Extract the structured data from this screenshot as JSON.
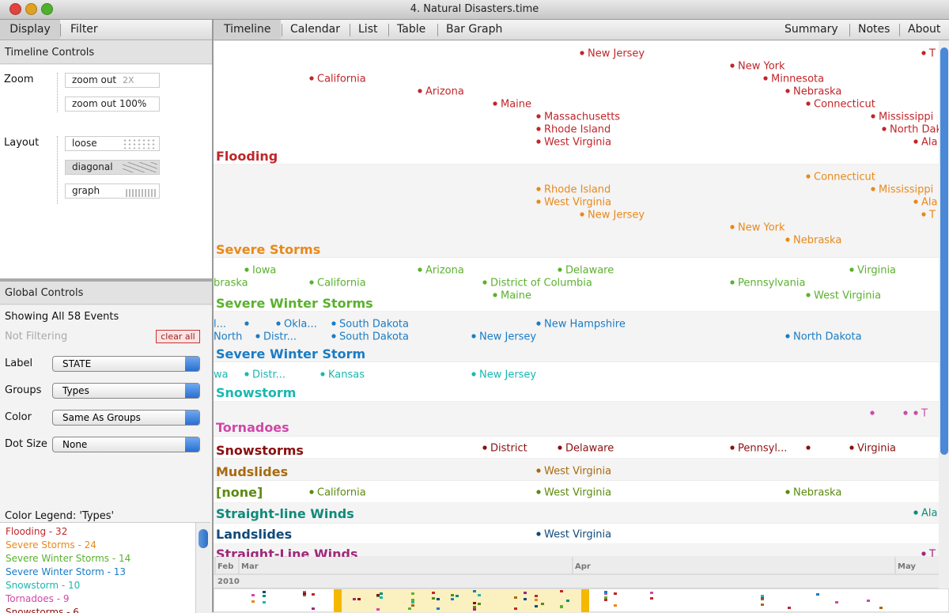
{
  "window_title": "4. Natural Disasters.time",
  "left_tabs": [
    "Display",
    "Filter"
  ],
  "timeline_controls": {
    "title": "Timeline Controls",
    "zoom_label": "Zoom",
    "zoom_buttons": [
      {
        "label": "zoom out",
        "hint": "2X"
      },
      {
        "label": "zoom out 100%"
      }
    ],
    "layout_label": "Layout",
    "layout_buttons": [
      "loose",
      "diagonal",
      "graph"
    ]
  },
  "global_controls": {
    "title": "Global Controls",
    "status": "Showing All 58 Events",
    "filter_status": "Not Filtering",
    "clear_button": "clear all",
    "fields": [
      {
        "label": "Label",
        "value": "STATE"
      },
      {
        "label": "Groups",
        "value": "Types"
      },
      {
        "label": "Color",
        "value": "Same As Groups"
      },
      {
        "label": "Dot Size",
        "value": "None"
      }
    ]
  },
  "color_legend": {
    "title": "Color Legend: 'Types'",
    "items": [
      {
        "text": "Flooding - 32",
        "color": "#c0262a"
      },
      {
        "text": "Severe Storms - 24",
        "color": "#e8891a"
      },
      {
        "text": "Severe Winter Storms - 14",
        "color": "#5bb12f"
      },
      {
        "text": "Severe Winter Storm - 13",
        "color": "#1a7cc4"
      },
      {
        "text": "Snowstorm - 10",
        "color": "#1ab8b0"
      },
      {
        "text": "Tornadoes - 9",
        "color": "#d048a8"
      },
      {
        "text": "Snowstorms - 6",
        "color": "#8b1010"
      }
    ]
  },
  "view_tabs": [
    "Timeline",
    "Calendar",
    "List",
    "Table",
    "Bar Graph"
  ],
  "info_tabs": [
    "Summary",
    "Notes",
    "About"
  ],
  "timeline": {
    "groups": [
      {
        "name": "Flooding",
        "color": "#c0262a",
        "events": [
          "New Jersey",
          "California",
          "Arizona",
          "Maine",
          "Massachusetts",
          "Rhode Island",
          "West Virginia",
          "New York",
          "Minnesota",
          "Nebraska",
          "Connecticut",
          "Mississippi",
          "North Dak",
          "Ala",
          "T"
        ]
      },
      {
        "name": "Severe Storms",
        "color": "#e8891a",
        "events": [
          "Connecticut",
          "Rhode Island",
          "Mississippi",
          "West Virginia",
          "Ala",
          "New Jersey",
          "T",
          "New York",
          "Nebraska"
        ]
      },
      {
        "name": "Severe Winter Storms",
        "color": "#5bb12f",
        "events": [
          "Iowa",
          "Arizona",
          "Delaware",
          "Virginia",
          "braska",
          "California",
          "District of Columbia",
          "Pennsylvania",
          "Maine",
          "West Virginia"
        ]
      },
      {
        "name": "Severe Winter Storm",
        "color": "#1a7cc4",
        "events": [
          "l...",
          "Okla...",
          "South Dakota",
          "New Hampshire",
          "North",
          "Distr...",
          "South Dakota",
          "New Jersey",
          "North Dakota"
        ]
      },
      {
        "name": "Snowstorm",
        "color": "#1ab8b0",
        "events": [
          "wa",
          "Distr...",
          "Kansas",
          "New Jersey"
        ]
      },
      {
        "name": "Tornadoes",
        "color": "#d048a8",
        "events": [
          "T"
        ]
      },
      {
        "name": "Snowstorms",
        "color": "#8b1010",
        "events": [
          "District",
          "Delaware",
          "Pennsyl...",
          "Virginia"
        ]
      },
      {
        "name": "Mudslides",
        "color": "#a86a10",
        "events": [
          "West Virginia"
        ]
      },
      {
        "name": "[none]",
        "color": "#5c8a10",
        "events": [
          "California",
          "West Virginia",
          "Nebraska"
        ]
      },
      {
        "name": "Straight-line Winds",
        "color": "#108a7a",
        "events": [
          "Ala"
        ]
      },
      {
        "name": "Landslides",
        "color": "#104a7a",
        "events": [
          "West Virginia"
        ]
      },
      {
        "name": "Straight-Line Winds",
        "color": "#a0287a",
        "events": [
          "T"
        ]
      }
    ],
    "months": [
      "Feb",
      "Mar",
      "Apr",
      "May"
    ],
    "year": "2010"
  }
}
